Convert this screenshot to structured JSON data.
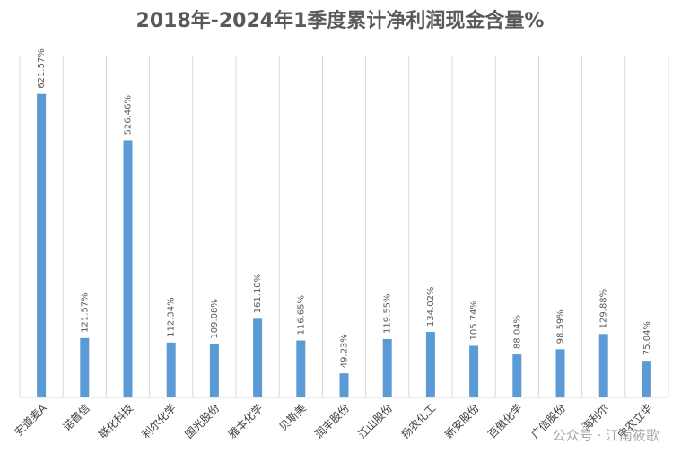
{
  "chart_data": {
    "type": "bar",
    "title": "2018年-2024年1季度累计净利润现金含量%",
    "categories": [
      "安道麦A",
      "诺普信",
      "联化科技",
      "利尔化学",
      "国光股份",
      "雅本化学",
      "贝斯美",
      "润丰股份",
      "江山股份",
      "扬农化工",
      "新安股份",
      "百傲化学",
      "广信股份",
      "海利尔",
      "中农立华"
    ],
    "values": [
      621.57,
      121.57,
      526.46,
      112.34,
      109.08,
      161.1,
      116.65,
      49.23,
      119.55,
      134.02,
      105.74,
      88.04,
      98.59,
      129.88,
      75.04
    ],
    "value_labels": [
      "621.57%",
      "121.57%",
      "526.46%",
      "112.34%",
      "109.08%",
      "161.10%",
      "116.65%",
      "49.23%",
      "119.55%",
      "134.02%",
      "105.74%",
      "88.04%",
      "98.59%",
      "129.88%",
      "75.04%"
    ],
    "color": "#5b9bd5",
    "ylim": [
      0,
      700
    ],
    "watermark": "公众号 · 江南筱歌"
  }
}
